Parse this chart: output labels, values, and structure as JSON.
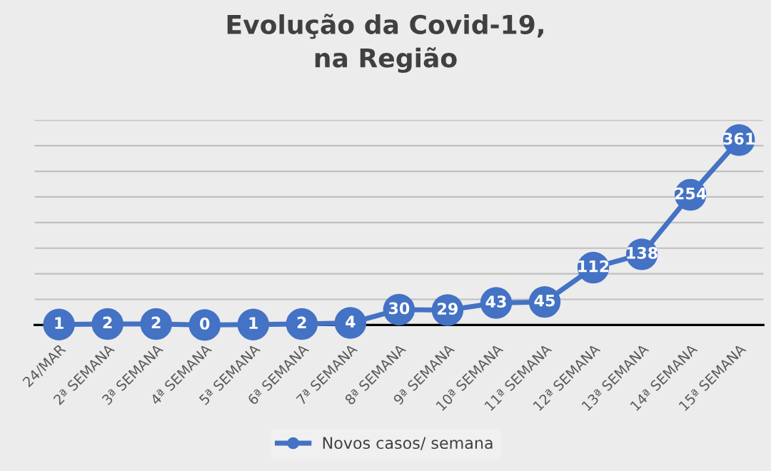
{
  "chart_data": {
    "type": "line",
    "title": "Evolução da Covid-19,\nna Região",
    "categories": [
      "24/MAR",
      "2ª SEMANA",
      "3ª SEMANA",
      "4ª SEMANA",
      "5ª SEMANA",
      "6ª SEMANA",
      "7ª SEMANA",
      "8ª SEMANA",
      "9ª SEMANA",
      "10ª SEMANA",
      "11ª SEMANA",
      "12ª SEMANA",
      "13ª SEMANA",
      "14ª SEMANA",
      "15ª SEMANA"
    ],
    "series": [
      {
        "name": "Novos casos/ semana",
        "color": "#4472c4",
        "values": [
          1,
          2,
          2,
          0,
          1,
          2,
          4,
          30,
          29,
          43,
          45,
          112,
          138,
          254,
          361
        ]
      }
    ],
    "ylim": [
      0,
      400
    ],
    "yticks": [
      {
        "value": 0,
        "label": null
      },
      {
        "value": 50,
        "label": null
      },
      {
        "value": 100,
        "label": null
      },
      {
        "value": 150,
        "label": null
      },
      {
        "value": 200,
        "label": null
      },
      {
        "value": 250,
        "label": null
      },
      {
        "value": 300,
        "label": null
      },
      {
        "value": 350,
        "label": null
      },
      {
        "value": 400,
        "label": null
      }
    ],
    "tick_labels": "x",
    "grid": "y",
    "legend": "bottom",
    "marker": "circle",
    "line_style": "solid",
    "data_labels": true
  }
}
